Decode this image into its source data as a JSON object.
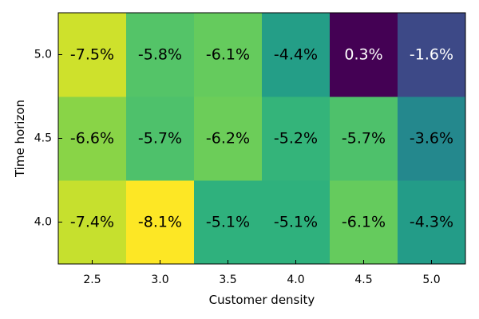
{
  "chart_data": {
    "type": "heatmap",
    "title": "",
    "xlabel": "Customer density",
    "ylabel": "Time horizon",
    "x_categories": [
      "2.5",
      "3.0",
      "3.5",
      "4.0",
      "4.5",
      "5.0"
    ],
    "y_categories": [
      "4.0",
      "4.5",
      "5.0"
    ],
    "values": [
      [
        -7.4,
        -8.1,
        -5.1,
        -5.1,
        -6.1,
        -4.3
      ],
      [
        -6.6,
        -5.7,
        -6.2,
        -5.2,
        -5.7,
        -3.6
      ],
      [
        -7.5,
        -5.8,
        -6.1,
        -4.4,
        0.3,
        -1.6
      ]
    ],
    "value_labels": [
      [
        "-7.4%",
        "-8.1%",
        "-5.1%",
        "-5.1%",
        "-6.1%",
        "-4.3%"
      ],
      [
        "-6.6%",
        "-5.7%",
        "-6.2%",
        "-5.2%",
        "-5.7%",
        "-3.6%"
      ],
      [
        "-7.5%",
        "-5.8%",
        "-6.1%",
        "-4.4%",
        "0.3%",
        "-1.6%"
      ]
    ],
    "unit": "%",
    "colormap": "viridis_reversed",
    "colors": {
      "low": "#fde725",
      "high": "#440154",
      "text_dark": "#000000",
      "text_light": "#ffffff"
    },
    "grid": false,
    "legend": "none"
  }
}
